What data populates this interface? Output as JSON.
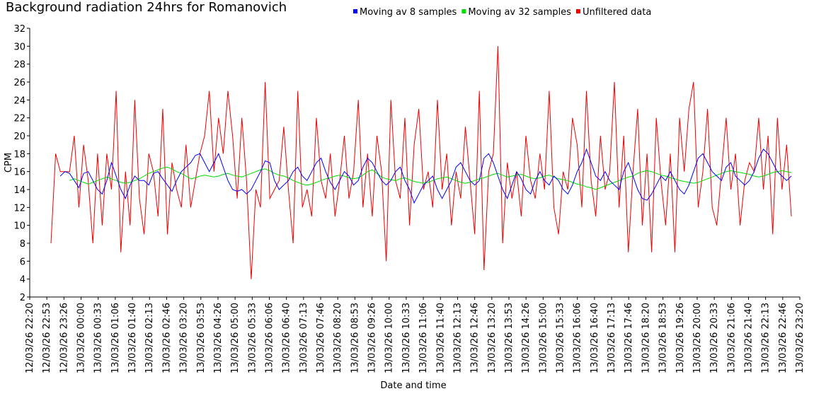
{
  "chart_data": {
    "type": "line",
    "title": "Background radiation 24hrs for Romanovich",
    "x_label": "Date and time",
    "y_label": "CPM",
    "x_tick_labels": [
      "12/03/26 22:20",
      "12/03/26 22:53",
      "12/03/26 23:26",
      "13/03/26 00:00",
      "13/03/26 00:33",
      "13/03/26 01:06",
      "13/03/26 01:40",
      "13/03/26 02:13",
      "13/03/26 02:46",
      "13/03/26 03:20",
      "13/03/26 03:53",
      "13/03/26 04:26",
      "13/03/26 05:00",
      "13/03/26 05:33",
      "13/03/26 06:06",
      "13/03/26 06:40",
      "13/03/26 07:13",
      "13/03/26 07:46",
      "13/03/26 08:20",
      "13/03/26 08:53",
      "13/03/26 09:26",
      "13/03/26 10:00",
      "13/03/26 10:33",
      "13/03/26 11:06",
      "13/03/26 11:40",
      "13/03/26 12:13",
      "13/03/26 12:46",
      "13/03/26 13:20",
      "13/03/26 13:53",
      "13/03/26 14:26",
      "13/03/26 15:00",
      "13/03/26 15:33",
      "13/03/26 16:06",
      "13/03/26 16:40",
      "13/03/26 17:13",
      "13/03/26 17:46",
      "13/03/26 18:20",
      "13/03/26 18:53",
      "13/03/26 19:26",
      "13/03/26 20:00",
      "13/03/26 20:33",
      "13/03/26 21:06",
      "13/03/26 21:40",
      "13/03/26 22:13",
      "13/03/26 22:46",
      "13/03/26 23:20"
    ],
    "ylim": [
      2,
      32
    ],
    "yticks": [
      2,
      4,
      6,
      8,
      10,
      12,
      14,
      16,
      18,
      20,
      22,
      24,
      26,
      28,
      30,
      32
    ],
    "series": [
      {
        "name": "Moving av 8 samples",
        "color": "#0000ff",
        "values": [
          null,
          null,
          15.5,
          16,
          15.8,
          15,
          14.2,
          15.8,
          16,
          15,
          14,
          13.5,
          15,
          17,
          15.5,
          14,
          13,
          14.5,
          15.5,
          15,
          15,
          14.5,
          15.8,
          16,
          15.2,
          14.5,
          13.8,
          15,
          16,
          16.5,
          17,
          17.8,
          18,
          17,
          16,
          17,
          18,
          16.5,
          15,
          14,
          13.8,
          14,
          13.5,
          14,
          15,
          16,
          17.2,
          17,
          15,
          14,
          14.5,
          15,
          16,
          16.5,
          15.5,
          15,
          16,
          17,
          17.5,
          16,
          14.8,
          14,
          15,
          16,
          15.5,
          14.5,
          15,
          16.5,
          17.5,
          17,
          16,
          15,
          14.5,
          15,
          16,
          16.5,
          15,
          14,
          12.5,
          13.5,
          14.5,
          15,
          15.5,
          14,
          13,
          14,
          15,
          16.5,
          17,
          16,
          15,
          14.5,
          15,
          17.5,
          18,
          17,
          15.5,
          14,
          13,
          14.5,
          16,
          15.2,
          14,
          13.5,
          15,
          16,
          15,
          14.5,
          15.5,
          15,
          14,
          13.5,
          14.5,
          16,
          17,
          18.5,
          17,
          15.5,
          15,
          16,
          15,
          14.5,
          14,
          16,
          17,
          15.5,
          14,
          13,
          12.8,
          13.5,
          14.5,
          15.5,
          15,
          16,
          15,
          14,
          13.5,
          14.5,
          16,
          17.5,
          18,
          17,
          16,
          15.5,
          15,
          16.5,
          17,
          15.5,
          15,
          14.5,
          15,
          16,
          17.5,
          18.5,
          18,
          17,
          16,
          15.5,
          15,
          15.5
        ]
      },
      {
        "name": "Moving av 32 samples",
        "color": "#00dd00",
        "values": [
          null,
          null,
          null,
          null,
          15,
          15.2,
          15,
          14.8,
          14.6,
          14.8,
          15,
          15.2,
          15.4,
          15.2,
          15,
          14.8,
          14.7,
          14.8,
          15,
          15.2,
          15.5,
          15.8,
          16,
          16.2,
          16.4,
          16.5,
          16.3,
          16,
          15.8,
          15.5,
          15.2,
          15.3,
          15.5,
          15.6,
          15.5,
          15.4,
          15.5,
          15.7,
          15.8,
          15.6,
          15.5,
          15.4,
          15.6,
          15.8,
          16,
          16.2,
          16.3,
          16.1,
          15.8,
          15.6,
          15.5,
          15.3,
          15,
          14.8,
          14.6,
          14.5,
          14.6,
          14.8,
          15,
          15.2,
          15.3,
          15.5,
          15.6,
          15.5,
          15.3,
          15.2,
          15.3,
          15.6,
          16,
          16.2,
          15.8,
          15.4,
          15.2,
          15.1,
          15,
          15.2,
          15.3,
          15.1,
          14.9,
          14.8,
          14.7,
          14.8,
          15,
          15.2,
          15.3,
          15.4,
          15.2,
          15,
          14.8,
          14.7,
          14.8,
          15,
          15.2,
          15.3,
          15.5,
          15.7,
          15.8,
          15.6,
          15.4,
          15.5,
          15.6,
          15.7,
          15.5,
          15.3,
          15.2,
          15.3,
          15.5,
          15.6,
          15.4,
          15.2,
          15.1,
          15,
          14.8,
          14.6,
          14.5,
          14.3,
          14.2,
          14,
          14.2,
          14.4,
          14.6,
          14.8,
          15,
          15.2,
          15.4,
          15.5,
          15.8,
          16,
          16.1,
          16,
          15.8,
          15.6,
          15.5,
          15.3,
          15.2,
          15,
          14.9,
          14.8,
          14.7,
          14.8,
          15,
          15.2,
          15.4,
          15.6,
          15.8,
          16,
          16.1,
          16,
          15.9,
          15.8,
          15.7,
          15.5,
          15.4,
          15.5,
          15.7,
          15.9,
          16,
          16.1,
          16,
          15.9
        ]
      },
      {
        "name": "Unfiltered data",
        "color": "#ee0000",
        "values": [
          8,
          18,
          16,
          16,
          16,
          20,
          12,
          19,
          15,
          8,
          18,
          10,
          18,
          14,
          25,
          7,
          16,
          10,
          24,
          13,
          9,
          18,
          16,
          11,
          23,
          9,
          17,
          14,
          12,
          19,
          12,
          15,
          18,
          20,
          25,
          16,
          22,
          18,
          25,
          20,
          13,
          22,
          15,
          4,
          14,
          12,
          26,
          13,
          14,
          15,
          21,
          14,
          8,
          25,
          12,
          14,
          11,
          22,
          15,
          13,
          18,
          11,
          15,
          20,
          13,
          16,
          24,
          12,
          18,
          11,
          20,
          16,
          6,
          24,
          15,
          13,
          22,
          10,
          19,
          23,
          14,
          16,
          12,
          24,
          14,
          18,
          10,
          16,
          13,
          21,
          15,
          9,
          25,
          5,
          16,
          18,
          30,
          8,
          17,
          13,
          16,
          11,
          20,
          15,
          13,
          18,
          14,
          25,
          12,
          9,
          16,
          14,
          22,
          19,
          12,
          25,
          15,
          11,
          20,
          14,
          16,
          26,
          12,
          20,
          7,
          16,
          23,
          10,
          18,
          7,
          22,
          15,
          10,
          18,
          7,
          22,
          16,
          23,
          26,
          12,
          16,
          23,
          12,
          10,
          16,
          22,
          14,
          18,
          10,
          15,
          17,
          16,
          22,
          14,
          20,
          9,
          22,
          14,
          19,
          11
        ]
      }
    ]
  }
}
